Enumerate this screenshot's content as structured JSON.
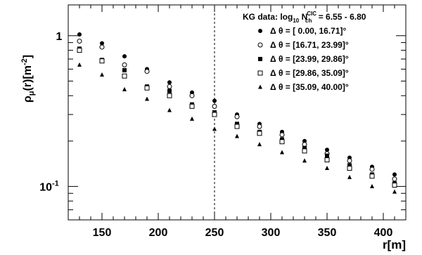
{
  "chart_data": {
    "type": "scatter",
    "xlabel": "r[m]",
    "ylabel_main": "ρ",
    "ylabel_sub": "μ",
    "ylabel_tail": "(r)[m",
    "ylabel_exp": "-2",
    "ylabel_close": "]",
    "x_scale": "linear",
    "y_scale": "log",
    "xlim": [
      120,
      420
    ],
    "ylim": [
      0.06,
      1.6
    ],
    "x_ticks": [
      150,
      200,
      250,
      300,
      350,
      400
    ],
    "y_tick_labels": [
      {
        "value": 1,
        "base": "1",
        "exp": ""
      },
      {
        "value": 0.1,
        "base": "10",
        "exp": "-1"
      }
    ],
    "grid": false,
    "vline_x": 250,
    "vline_style": "dashed",
    "legend": {
      "placement": "top-right",
      "title_prefix": "KG data: log",
      "title_sub": "10",
      "title_n": " N",
      "title_n_sub": "ch",
      "title_n_sup": "CIC",
      "title_suffix": " = 6.55 - 6.80"
    },
    "x": [
      130,
      150,
      170,
      190,
      210,
      230,
      250,
      270,
      290,
      310,
      330,
      350,
      370,
      390,
      410
    ],
    "series": [
      {
        "name": "Δ θ = [ 0.00, 16.71]°",
        "marker": "filled-circle",
        "values": [
          1.02,
          0.89,
          0.73,
          0.6,
          0.49,
          0.42,
          0.37,
          0.3,
          0.26,
          0.23,
          0.2,
          0.175,
          0.155,
          0.135,
          0.12
        ]
      },
      {
        "name": "Δ θ = [16.71, 23.99]°",
        "marker": "open-circle",
        "values": [
          0.92,
          0.84,
          0.64,
          0.58,
          0.46,
          0.4,
          0.34,
          0.29,
          0.25,
          0.22,
          0.19,
          0.165,
          0.148,
          0.13,
          0.112
        ]
      },
      {
        "name": "Δ θ = [23.99, 29.86]°",
        "marker": "filled-square",
        "values": [
          0.82,
          0.69,
          0.59,
          0.46,
          0.43,
          0.35,
          0.31,
          0.26,
          0.23,
          0.205,
          0.18,
          0.16,
          0.138,
          0.12,
          0.105
        ]
      },
      {
        "name": "Δ θ = [29.86, 35.09]°",
        "marker": "open-square",
        "values": [
          0.8,
          0.68,
          0.54,
          0.45,
          0.4,
          0.34,
          0.3,
          0.25,
          0.225,
          0.198,
          0.172,
          0.15,
          0.132,
          0.117,
          0.102
        ]
      },
      {
        "name": "Δ θ = [35.09, 40.00]°",
        "marker": "filled-triangle",
        "values": [
          0.64,
          0.55,
          0.44,
          0.38,
          0.32,
          0.28,
          0.24,
          0.215,
          0.19,
          0.168,
          0.148,
          0.132,
          0.115,
          0.1,
          0.092
        ]
      }
    ]
  }
}
